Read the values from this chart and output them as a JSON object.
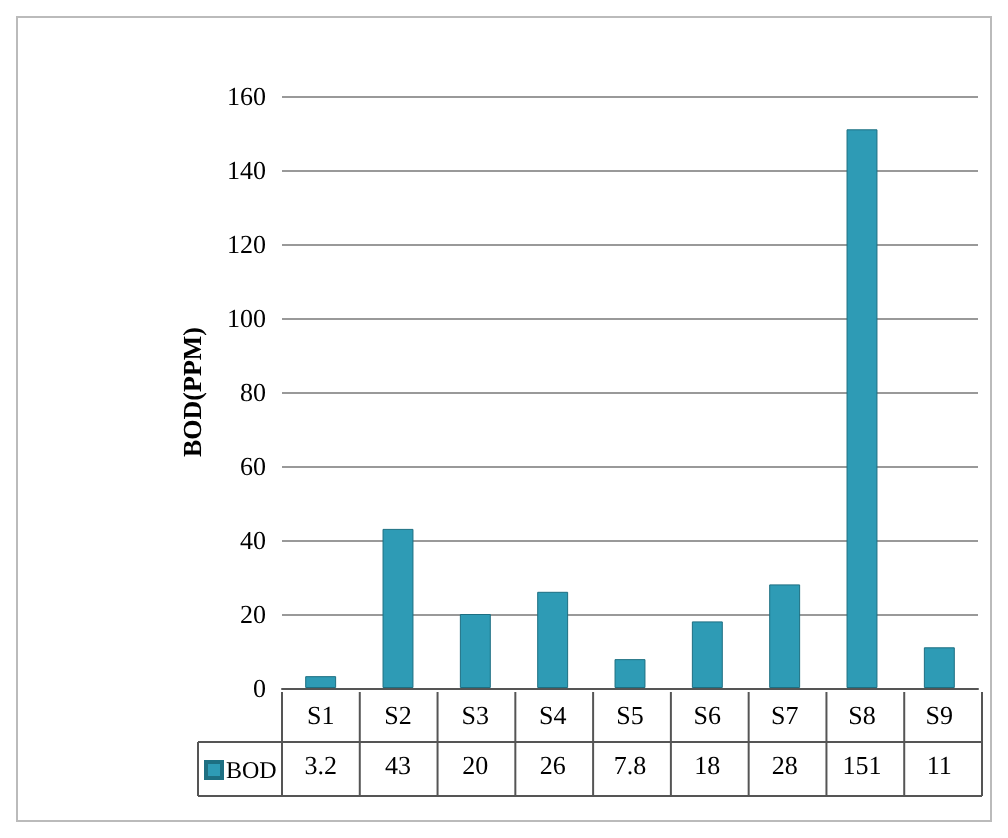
{
  "chart_data": {
    "type": "bar",
    "ylabel": "BOD(PPM)",
    "categories": [
      "S1",
      "S2",
      "S3",
      "S4",
      "S5",
      "S6",
      "S7",
      "S8",
      "S9"
    ],
    "series": [
      {
        "name": "BOD",
        "color": "#2e9bb5",
        "values": [
          3.2,
          43,
          20,
          26,
          7.8,
          18,
          28,
          151,
          11
        ]
      }
    ],
    "ylim": [
      0,
      160
    ],
    "yticks": [
      0,
      20,
      40,
      60,
      80,
      100,
      120,
      140,
      160
    ],
    "grid": "y",
    "legend": "bottom",
    "data_labels": true
  }
}
